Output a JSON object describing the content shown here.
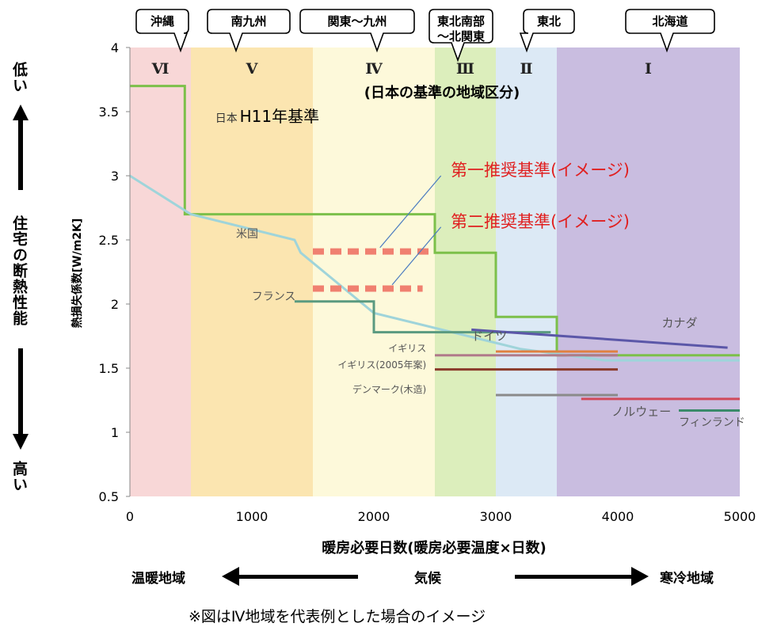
{
  "chart_data": {
    "type": "line",
    "xlabel": "暖房必要日数(暖房必要温度×日数)",
    "ylabel": "熱損失係数[W/m2K]",
    "xlim": [
      0,
      5000
    ],
    "ylim": [
      0.5,
      4
    ],
    "xticks": [
      0,
      1000,
      2000,
      3000,
      4000,
      5000
    ],
    "yticks": [
      0.5,
      1,
      1.5,
      2,
      2.5,
      3,
      3.5,
      4
    ],
    "x_tick_labels": [
      "0",
      "1000",
      "2000",
      "3000",
      "4000",
      "5000"
    ],
    "y_tick_labels": [
      "0.5",
      "1",
      "1.5",
      "2",
      "2.5",
      "3",
      "3.5",
      "4"
    ],
    "grid": false,
    "regions_caption": "(日本の基準の地域区分)",
    "regions": [
      {
        "label": "Ⅵ",
        "area": "沖縄",
        "x0": 0,
        "x1": 500,
        "color": "#f8d7d7"
      },
      {
        "label": "Ⅴ",
        "area": "南九州",
        "x0": 500,
        "x1": 1500,
        "color": "#fbe5b0"
      },
      {
        "label": "Ⅳ",
        "area": "関東～九州",
        "x0": 1500,
        "x1": 2500,
        "color": "#fdf9da"
      },
      {
        "label": "Ⅲ",
        "area": "東北南部\n～北関東",
        "x0": 2500,
        "x1": 3000,
        "color": "#dceebc"
      },
      {
        "label": "Ⅱ",
        "area": "東北",
        "x0": 3000,
        "x1": 3500,
        "color": "#dce9f5"
      },
      {
        "label": "Ⅰ",
        "area": "北海道",
        "x0": 3500,
        "x1": 5000,
        "color": "#c9bde0"
      }
    ],
    "series": [
      {
        "name": "日本 H11年基準",
        "color": "#7cc04a",
        "width": 3,
        "dash": "",
        "x": [
          0,
          450,
          450,
          2500,
          2500,
          3000,
          3000,
          3500,
          3500,
          5000
        ],
        "y": [
          3.7,
          3.7,
          2.7,
          2.7,
          2.4,
          2.4,
          1.9,
          1.9,
          1.6,
          1.6
        ]
      },
      {
        "name": "米国",
        "color": "#9fd4da",
        "width": 3,
        "dash": "",
        "x": [
          0,
          500,
          1350,
          1400,
          2000,
          3200,
          3900,
          5000
        ],
        "y": [
          3.0,
          2.7,
          2.5,
          2.4,
          1.93,
          1.65,
          1.56,
          1.56
        ]
      },
      {
        "name": "フランス",
        "color": "#5a9a80",
        "width": 3,
        "dash": "",
        "x": [
          1350,
          2000,
          2000,
          3450
        ],
        "y": [
          2.02,
          2.02,
          1.78,
          1.78
        ]
      },
      {
        "name": "カナダ",
        "color": "#5b57a8",
        "width": 3,
        "dash": "",
        "x": [
          2800,
          4900
        ],
        "y": [
          1.8,
          1.66
        ]
      },
      {
        "name": "ドイツ",
        "color": "#b07a8a",
        "width": 3,
        "dash": "",
        "x": [
          2500,
          4000
        ],
        "y": [
          1.6,
          1.6
        ]
      },
      {
        "name": "イギリス",
        "color": "#e08040",
        "width": 3,
        "dash": "",
        "x": [
          3000,
          4000
        ],
        "y": [
          1.63,
          1.63
        ]
      },
      {
        "name": "イギリス(2005年案)",
        "color": "#8a3a2a",
        "width": 3,
        "dash": "",
        "x": [
          2500,
          4000
        ],
        "y": [
          1.49,
          1.49
        ]
      },
      {
        "name": "デンマーク(木造)",
        "color": "#8a8a8a",
        "width": 3,
        "dash": "",
        "x": [
          3000,
          4000
        ],
        "y": [
          1.29,
          1.29
        ]
      },
      {
        "name": "ノルウェー",
        "color": "#d04a5a",
        "width": 3,
        "dash": "",
        "x": [
          3700,
          5000
        ],
        "y": [
          1.26,
          1.26
        ]
      },
      {
        "name": "フィンランド",
        "color": "#3a8a6a",
        "width": 3,
        "dash": "",
        "x": [
          4500,
          5000
        ],
        "y": [
          1.17,
          1.17
        ]
      },
      {
        "name": "第一推奨基準(イメージ)",
        "color": "#f08070",
        "width": 8,
        "dash": "14,8",
        "x": [
          1500,
          2500
        ],
        "y": [
          2.41,
          2.41
        ]
      },
      {
        "name": "第二推奨基準(イメージ)",
        "color": "#f08070",
        "width": 8,
        "dash": "14,8",
        "x": [
          1500,
          2400
        ],
        "y": [
          2.12,
          2.12
        ]
      }
    ],
    "annotations": [
      {
        "text": "日本",
        "x": 700,
        "y": 3.42,
        "size": 14,
        "color": "#333"
      },
      {
        "text": "H11年基準",
        "x": 900,
        "y": 3.42,
        "size": 20,
        "color": "#000"
      },
      {
        "text": "米国",
        "x": 870,
        "y": 2.52,
        "size": 14,
        "color": "#555"
      },
      {
        "text": "フランス",
        "x": 1360,
        "y": 2.03,
        "size": 14,
        "color": "#555",
        "anchor": "end"
      },
      {
        "text": "ドイツ",
        "x": 2800,
        "y": 1.72,
        "size": 15,
        "color": "#555"
      },
      {
        "text": "イギリス",
        "x": 2430,
        "y": 1.63,
        "size": 12,
        "color": "#555",
        "anchor": "end"
      },
      {
        "text": "イギリス(2005年案)",
        "x": 2430,
        "y": 1.5,
        "size": 12,
        "color": "#555",
        "anchor": "end"
      },
      {
        "text": "デンマーク(木造)",
        "x": 2430,
        "y": 1.31,
        "size": 12,
        "color": "#555",
        "anchor": "end"
      },
      {
        "text": "カナダ",
        "x": 4360,
        "y": 1.82,
        "size": 15,
        "color": "#555"
      },
      {
        "text": "ノルウェー",
        "x": 3950,
        "y": 1.13,
        "size": 15,
        "color": "#555"
      },
      {
        "text": "フィンランド",
        "x": 4500,
        "y": 1.05,
        "size": 14,
        "color": "#555"
      },
      {
        "text": "第一推奨基準(イメージ)",
        "x": 2630,
        "y": 3.0,
        "size": 21,
        "color": "#e02020"
      },
      {
        "text": "第二推奨基準(イメージ)",
        "x": 2630,
        "y": 2.6,
        "size": 21,
        "color": "#e02020"
      }
    ],
    "pointers": [
      {
        "x0": 2550,
        "y0": 3.0,
        "x1": 2050,
        "y1": 2.44
      },
      {
        "x0": 2550,
        "y0": 2.6,
        "x1": 2150,
        "y1": 2.15
      }
    ]
  },
  "side": {
    "top_label": "低い",
    "middle_label": "住宅の断熱性能",
    "bottom_label": "高い"
  },
  "bottom": {
    "warm_label": "温暖地域",
    "climate_label": "気候",
    "cold_label": "寒冷地域"
  },
  "note": "※図はⅣ地域を代表例とした場合のイメージ"
}
